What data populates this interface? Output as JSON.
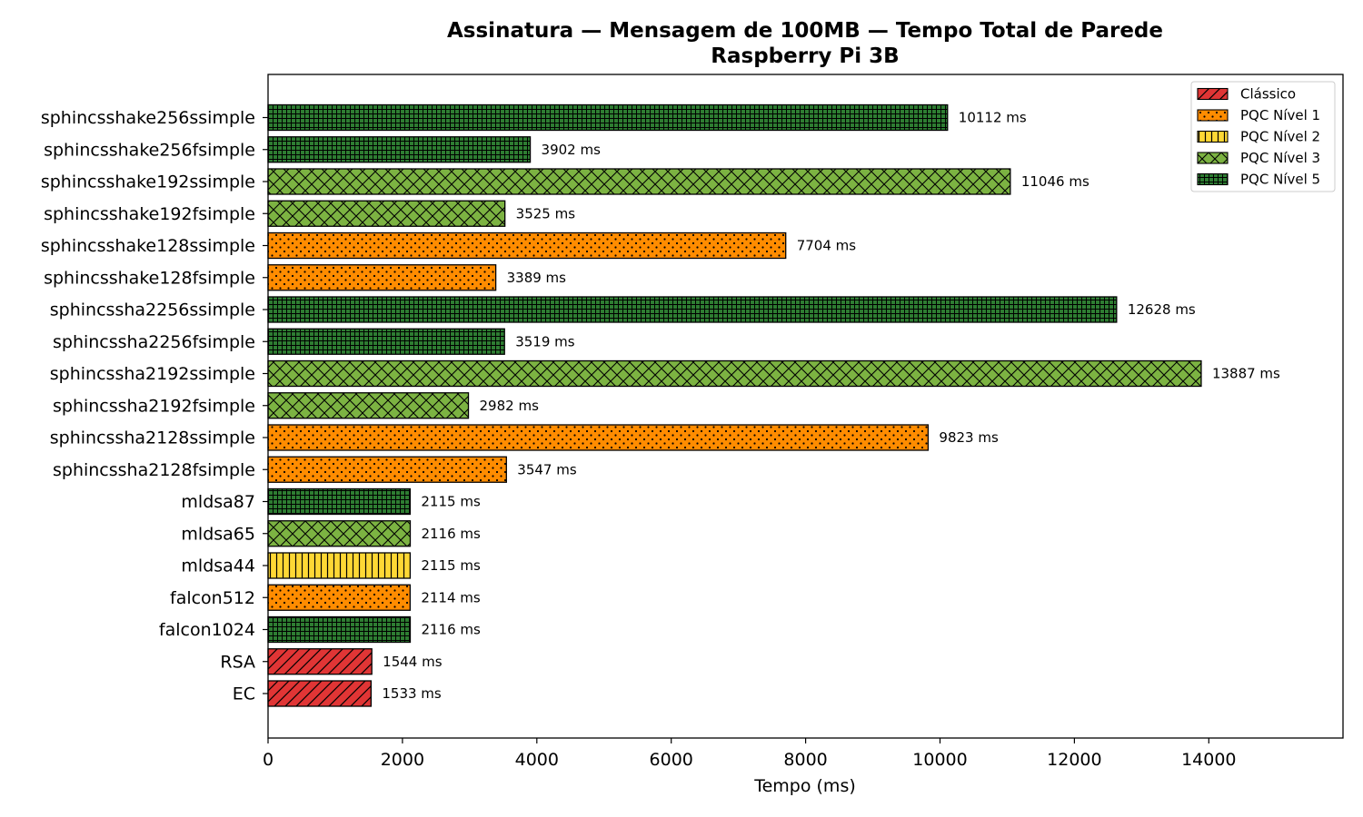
{
  "chart_data": {
    "type": "bar",
    "orientation": "horizontal",
    "title": "Assinatura — Mensagem de 100MB — Tempo Total de Parede",
    "subtitle": "Raspberry Pi 3B",
    "xlabel": "Tempo (ms)",
    "ylabel": "",
    "xlim": [
      0,
      16000
    ],
    "xticks": [
      0,
      2000,
      4000,
      6000,
      8000,
      10000,
      12000,
      14000
    ],
    "grid": false,
    "legend_position": "top-right",
    "value_suffix": " ms",
    "legend": [
      {
        "name": "Clássico",
        "color": "#e03535",
        "pattern": "diagonal"
      },
      {
        "name": "PQC Nível 1",
        "color": "#ff8c00",
        "pattern": "dots"
      },
      {
        "name": "PQC Nível 2",
        "color": "#fdd835",
        "pattern": "vertical"
      },
      {
        "name": "PQC Nível 3",
        "color": "#7cb342",
        "pattern": "crosshatch"
      },
      {
        "name": "PQC Nível 5",
        "color": "#2e7d32",
        "pattern": "grid"
      }
    ],
    "bars": [
      {
        "label": "sphincsshake256ssimple",
        "value": 10112,
        "level": 4
      },
      {
        "label": "sphincsshake256fsimple",
        "value": 3902,
        "level": 4
      },
      {
        "label": "sphincsshake192ssimple",
        "value": 11046,
        "level": 3
      },
      {
        "label": "sphincsshake192fsimple",
        "value": 3525,
        "level": 3
      },
      {
        "label": "sphincsshake128ssimple",
        "value": 7704,
        "level": 1
      },
      {
        "label": "sphincsshake128fsimple",
        "value": 3389,
        "level": 1
      },
      {
        "label": "sphincssha2256ssimple",
        "value": 12628,
        "level": 4
      },
      {
        "label": "sphincssha2256fsimple",
        "value": 3519,
        "level": 4
      },
      {
        "label": "sphincssha2192ssimple",
        "value": 13887,
        "level": 3
      },
      {
        "label": "sphincssha2192fsimple",
        "value": 2982,
        "level": 3
      },
      {
        "label": "sphincssha2128ssimple",
        "value": 9823,
        "level": 1
      },
      {
        "label": "sphincssha2128fsimple",
        "value": 3547,
        "level": 1
      },
      {
        "label": "mldsa87",
        "value": 2115,
        "level": 4
      },
      {
        "label": "mldsa65",
        "value": 2116,
        "level": 3
      },
      {
        "label": "mldsa44",
        "value": 2115,
        "level": 2
      },
      {
        "label": "falcon512",
        "value": 2114,
        "level": 1
      },
      {
        "label": "falcon1024",
        "value": 2116,
        "level": 4
      },
      {
        "label": "RSA",
        "value": 1544,
        "level": 0
      },
      {
        "label": "EC",
        "value": 1533,
        "level": 0
      }
    ]
  }
}
